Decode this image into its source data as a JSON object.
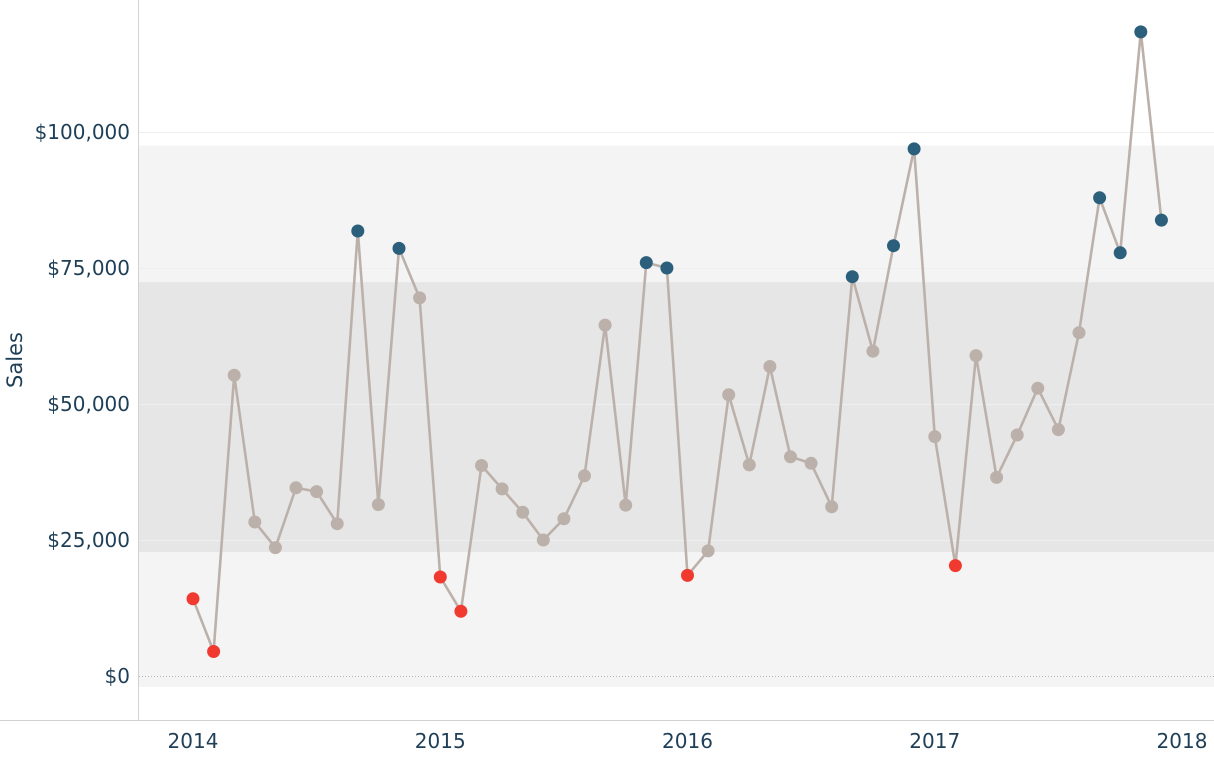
{
  "chart_data": {
    "type": "line",
    "xlabel": "",
    "ylabel": "Sales",
    "ylim": [
      -2000,
      120000
    ],
    "x_ticks": [
      "2014",
      "2015",
      "2016",
      "2017",
      "2018"
    ],
    "y_ticks": [
      {
        "value": 0,
        "label": "$0"
      },
      {
        "value": 25000,
        "label": "$25,000"
      },
      {
        "value": 50000,
        "label": "$50,000"
      },
      {
        "value": 75000,
        "label": "$75,000"
      },
      {
        "value": 100000,
        "label": "$100,000"
      }
    ],
    "bands": [
      {
        "from": -2000,
        "to": 97500,
        "level": "outer"
      },
      {
        "from": 22800,
        "to": 72400,
        "level": "inner"
      }
    ],
    "grid": true,
    "colors": {
      "line": "#bcb1aa",
      "normal_point": "#bcb1aa",
      "high_point": "#2c5f7c",
      "low_point": "#f03a30",
      "outer_band": "#f4f4f4",
      "inner_band": "#e6e6e6"
    },
    "series": [
      {
        "x": [
          "2014-01",
          "2014-02",
          "2014-03",
          "2014-04",
          "2014-05",
          "2014-06",
          "2014-07",
          "2014-08",
          "2014-09",
          "2014-10",
          "2014-11",
          "2014-12",
          "2015-01",
          "2015-02",
          "2015-03",
          "2015-04",
          "2015-05",
          "2015-06",
          "2015-07",
          "2015-08",
          "2015-09",
          "2015-10",
          "2015-11",
          "2015-12",
          "2016-01",
          "2016-02",
          "2016-03",
          "2016-04",
          "2016-05",
          "2016-06",
          "2016-07",
          "2016-08",
          "2016-09",
          "2016-10",
          "2016-11",
          "2016-12",
          "2017-01",
          "2017-02",
          "2017-03",
          "2017-04",
          "2017-05",
          "2017-06",
          "2017-07",
          "2017-08",
          "2017-09",
          "2017-10",
          "2017-11",
          "2017-12"
        ],
        "values": [
          14200,
          4500,
          55300,
          28300,
          23600,
          34600,
          33900,
          28000,
          81800,
          31500,
          78600,
          69500,
          18200,
          11900,
          38700,
          34400,
          30100,
          25000,
          28900,
          36800,
          64500,
          31400,
          76000,
          75000,
          18500,
          23000,
          51700,
          38800,
          56900,
          40300,
          39100,
          31100,
          73400,
          59700,
          79100,
          96900,
          44000,
          20300,
          58900,
          36500,
          44300,
          52900,
          45300,
          63100,
          87900,
          77800,
          118400,
          83800
        ],
        "status": [
          "low",
          "low",
          "normal",
          "normal",
          "normal",
          "normal",
          "normal",
          "normal",
          "high",
          "normal",
          "high",
          "normal",
          "low",
          "low",
          "normal",
          "normal",
          "normal",
          "normal",
          "normal",
          "normal",
          "normal",
          "normal",
          "high",
          "high",
          "low",
          "normal",
          "normal",
          "normal",
          "normal",
          "normal",
          "normal",
          "normal",
          "high",
          "normal",
          "high",
          "high",
          "normal",
          "low",
          "normal",
          "normal",
          "normal",
          "normal",
          "normal",
          "normal",
          "high",
          "high",
          "high",
          "high"
        ]
      }
    ]
  }
}
